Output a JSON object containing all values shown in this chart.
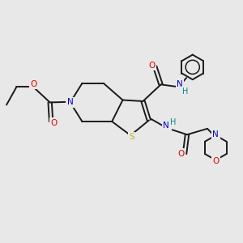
{
  "bg_color": "#e8e8e8",
  "bond_color": "#1a1a1a",
  "line_width": 1.4,
  "atom_colors": {
    "N": "#0000cc",
    "O": "#dd0000",
    "S": "#bbbb00",
    "NH": "#008888",
    "C": "#1a1a1a"
  },
  "figsize": [
    3.0,
    3.0
  ],
  "dpi": 100
}
